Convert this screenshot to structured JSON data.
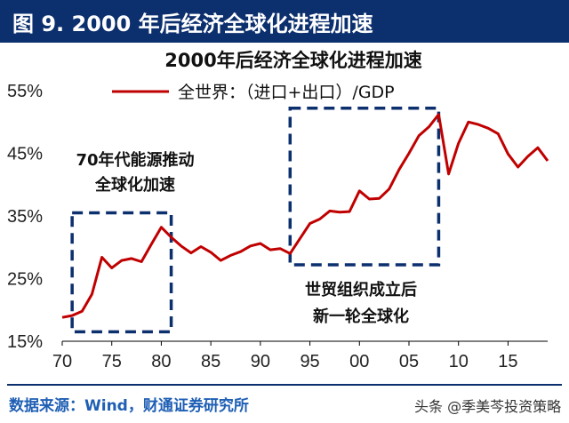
{
  "header": {
    "title": "图 9. 2000 年后经济全球化进程加速"
  },
  "footer": {
    "source": "数据来源：Wind，财通证券研究所",
    "watermark": "头条 @季美芩投资策略"
  },
  "colors": {
    "header_bg": "#0c2f6e",
    "line": "#c00000",
    "box": "#0c2f6e",
    "source_text": "#1f5fb4"
  },
  "chart_data": {
    "type": "line",
    "title": "2000年后经济全球化进程加速",
    "xlabel": "",
    "ylabel": "",
    "x_tick_labels": [
      "70",
      "75",
      "80",
      "85",
      "90",
      "95",
      "00",
      "05",
      "10",
      "15"
    ],
    "x_tick_years": [
      1970,
      1975,
      1980,
      1985,
      1990,
      1995,
      2000,
      2005,
      2010,
      2015
    ],
    "y_tick_labels": [
      "15%",
      "25%",
      "35%",
      "45%",
      "55%"
    ],
    "ylim": [
      15,
      55
    ],
    "xlim": [
      1970,
      2019
    ],
    "grid": false,
    "legend": "top",
    "series": [
      {
        "name": "全世界：（进口+出口）/GDP",
        "color": "#c00000",
        "x": [
          1970,
          1971,
          1972,
          1973,
          1974,
          1975,
          1976,
          1977,
          1978,
          1979,
          1980,
          1981,
          1982,
          1983,
          1984,
          1985,
          1986,
          1987,
          1988,
          1989,
          1990,
          1991,
          1992,
          1993,
          1994,
          1995,
          1996,
          1997,
          1998,
          1999,
          2000,
          2001,
          2002,
          2003,
          2004,
          2005,
          2006,
          2007,
          2008,
          2009,
          2010,
          2011,
          2012,
          2013,
          2014,
          2015,
          2016,
          2017,
          2018,
          2019
        ],
        "values": [
          18.8,
          19.1,
          19.8,
          22.5,
          28.4,
          26.7,
          27.9,
          28.2,
          27.7,
          30.5,
          33.2,
          31.6,
          30.2,
          29.1,
          30.1,
          29.2,
          27.9,
          28.7,
          29.3,
          30.2,
          30.6,
          29.6,
          29.8,
          29.0,
          31.4,
          33.8,
          34.5,
          35.8,
          35.6,
          35.7,
          39.0,
          37.7,
          37.8,
          39.3,
          42.4,
          45.0,
          47.8,
          49.2,
          51.2,
          41.7,
          46.6,
          50.0,
          49.6,
          49.0,
          48.1,
          44.9,
          42.8,
          44.5,
          45.9,
          43.8
        ]
      }
    ],
    "annotations": [
      {
        "lines": [
          "70年代能源推动",
          "全球化加速"
        ],
        "box_years": [
          1971,
          1981
        ],
        "box_range": [
          16.5,
          35.5
        ]
      },
      {
        "lines": [
          "世贸组织成立后",
          "新一轮全球化"
        ],
        "box_years": [
          1993,
          2008
        ],
        "box_range": [
          27.2,
          52.2
        ]
      }
    ]
  }
}
